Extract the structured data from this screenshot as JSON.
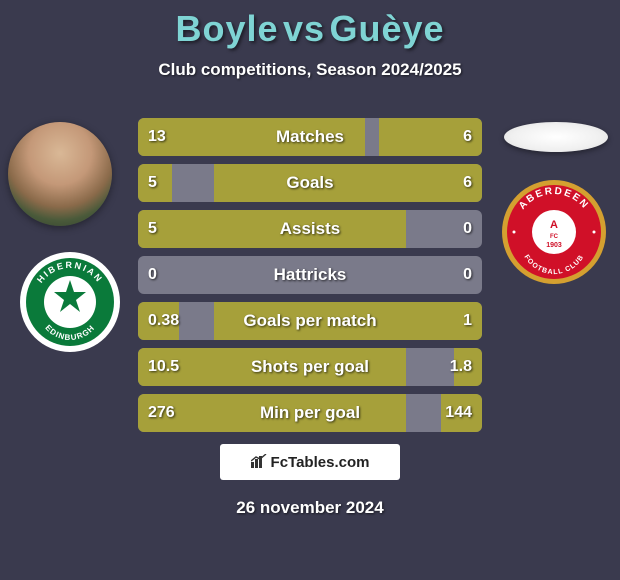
{
  "title": {
    "player1": "Boyle",
    "vs": "vs",
    "player2": "Guèye",
    "color": "#7fd4d4",
    "fontsize": 36
  },
  "subtitle": "Club competitions, Season 2024/2025",
  "chart": {
    "bar_color": "#a6a03a",
    "neutral_color": "#7a7a8a",
    "text_color": "#ffffff",
    "label_fontsize": 17,
    "value_fontsize": 16,
    "rows": [
      {
        "label": "Matches",
        "left_val": "13",
        "right_val": "6",
        "left_pct": 66,
        "right_pct": 30
      },
      {
        "label": "Goals",
        "left_val": "5",
        "right_val": "6",
        "left_pct": 10,
        "right_pct": 78
      },
      {
        "label": "Assists",
        "left_val": "5",
        "right_val": "0",
        "left_pct": 78,
        "right_pct": 0
      },
      {
        "label": "Hattricks",
        "left_val": "0",
        "right_val": "0",
        "left_pct": 0,
        "right_pct": 0
      },
      {
        "label": "Goals per match",
        "left_val": "0.38",
        "right_val": "1",
        "left_pct": 12,
        "right_pct": 78
      },
      {
        "label": "Shots per goal",
        "left_val": "10.5",
        "right_val": "1.8",
        "left_pct": 78,
        "right_pct": 8
      },
      {
        "label": "Min per goal",
        "left_val": "276",
        "right_val": "144",
        "left_pct": 78,
        "right_pct": 12
      }
    ]
  },
  "badges": {
    "left": {
      "name": "Hibernian",
      "outer_color": "#ffffff",
      "main_color": "#0a7a3a",
      "text_top": "HIBERNIAN",
      "text_bottom": "EDINBURGH"
    },
    "right": {
      "name": "Aberdeen",
      "outer_color": "#d4a030",
      "main_color": "#d01028",
      "text_top": "ABERDEEN",
      "text_mid": "FOOTBALL CLUB",
      "year": "1903"
    }
  },
  "footer": {
    "logo_text": "FcTables.com",
    "date": "26 november 2024"
  },
  "background_color": "#3a3a4e"
}
